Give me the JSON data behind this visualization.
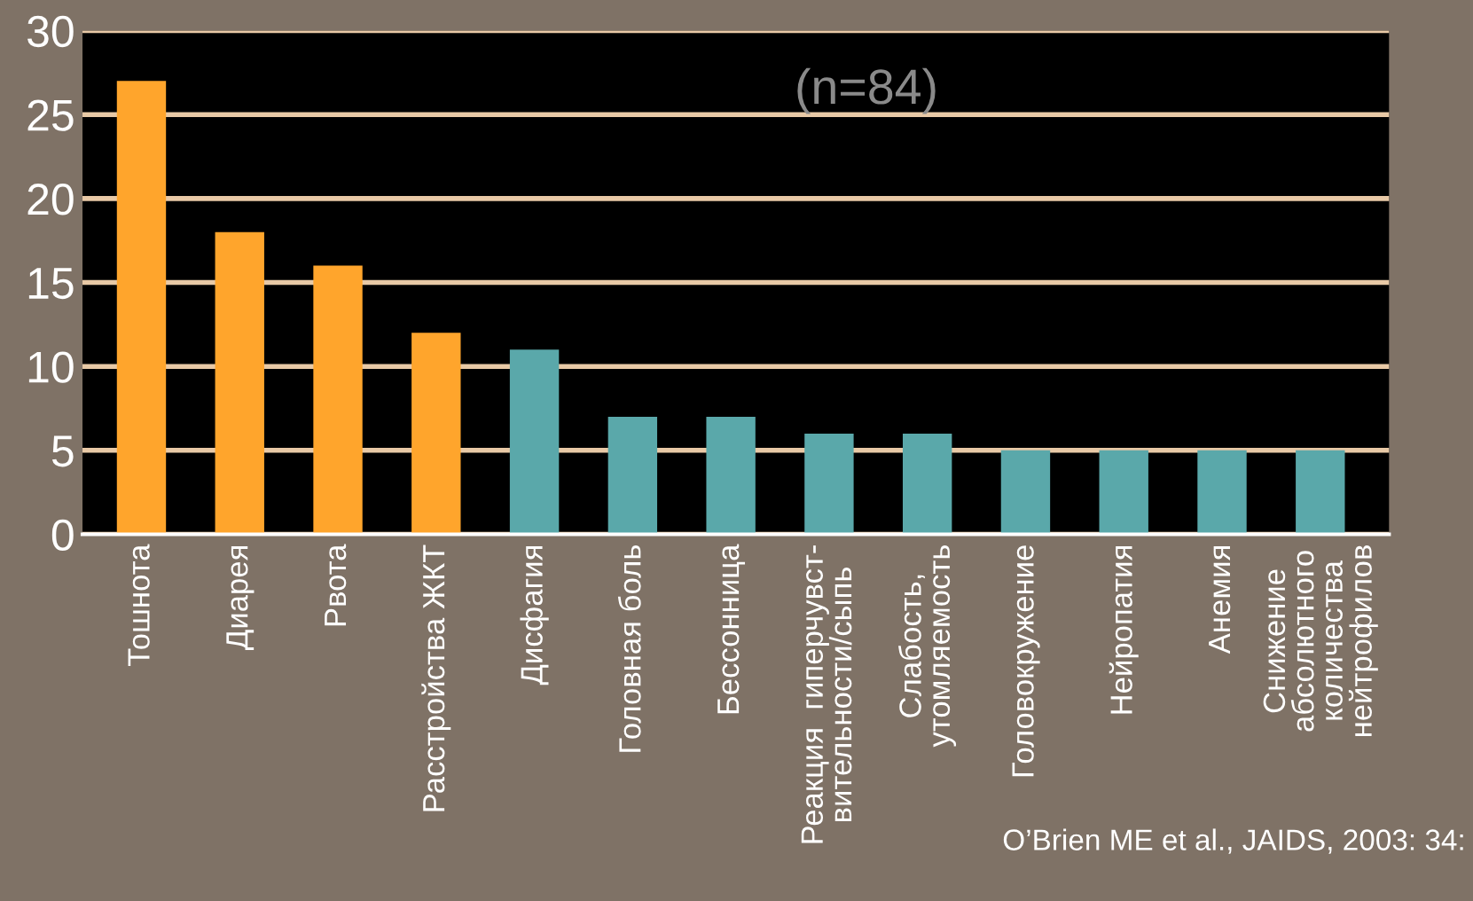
{
  "chart_data": {
    "type": "bar",
    "categories": [
      "Тошнота",
      "Диарея",
      "Рвота",
      "Расстройства ЖКТ",
      "Дисфагия",
      "Головная боль",
      "Бессонница",
      "Реакция  гиперчувст-\nвительности/сыпь",
      "Слабость,\nутомляемость",
      "Головокружение",
      "Нейропатия",
      "Анемия",
      "Снижение\nабсолютного\nколичества\nнейтрофилов"
    ],
    "values": [
      27,
      18,
      16,
      12,
      11,
      7,
      7,
      6,
      6,
      5,
      5,
      5,
      5
    ],
    "colors": [
      "#ffa52c",
      "#ffa52c",
      "#ffa52c",
      "#ffa52c",
      "#5aa8aa",
      "#5aa8aa",
      "#5aa8aa",
      "#5aa8aa",
      "#5aa8aa",
      "#5aa8aa",
      "#5aa8aa",
      "#5aa8aa",
      "#5aa8aa"
    ],
    "ylim": [
      0,
      30
    ],
    "yticks": [
      0,
      5,
      10,
      15,
      20,
      25,
      30
    ],
    "grid": "y",
    "annotations": [
      "(n=84)",
      "O’Brien ME et al., JAIDS, 2003: 34:"
    ]
  }
}
